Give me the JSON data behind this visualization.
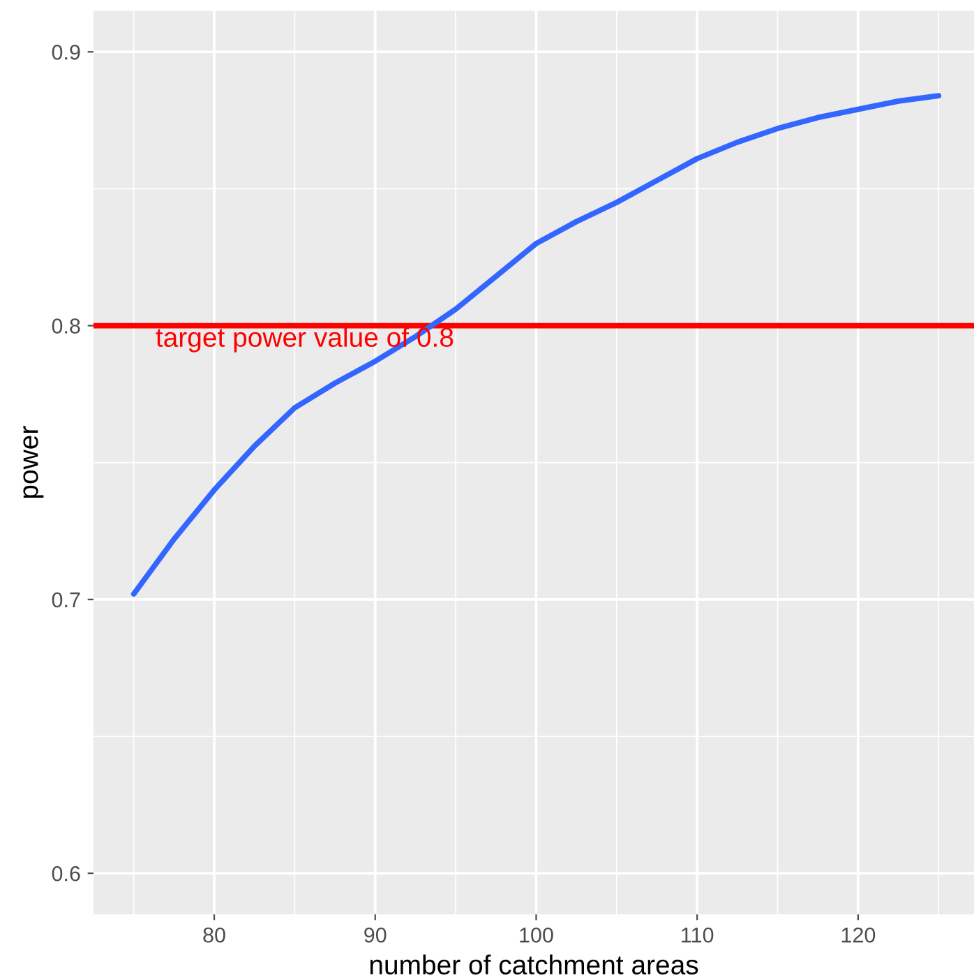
{
  "chart_data": {
    "type": "line",
    "xlabel": "number of catchment areas",
    "ylabel": "power",
    "x": [
      75,
      77.5,
      80,
      82.5,
      85,
      87.5,
      90,
      92.5,
      95,
      97.5,
      100,
      102.5,
      105,
      107.5,
      110,
      112.5,
      115,
      117.5,
      120,
      122.5,
      125
    ],
    "series": [
      {
        "color": "#3366ff",
        "values": [
          0.702,
          0.722,
          0.74,
          0.756,
          0.77,
          0.779,
          0.787,
          0.796,
          0.806,
          0.818,
          0.83,
          0.838,
          0.845,
          0.853,
          0.861,
          0.867,
          0.872,
          0.876,
          0.879,
          0.882,
          0.884
        ]
      }
    ],
    "xlim": [
      72.5,
      127.2
    ],
    "xticks": [
      80,
      90,
      100,
      110,
      120
    ],
    "ylim": [
      0.585,
      0.915
    ],
    "yticks": [
      0.6,
      0.7,
      0.8,
      0.9
    ],
    "ref_lines": [
      {
        "axis": "y",
        "value": 0.8,
        "color": "#ff0000"
      }
    ],
    "annotations": [
      "target power value of 0.8"
    ],
    "grid": true,
    "marker": "none",
    "line_style": "solid"
  }
}
